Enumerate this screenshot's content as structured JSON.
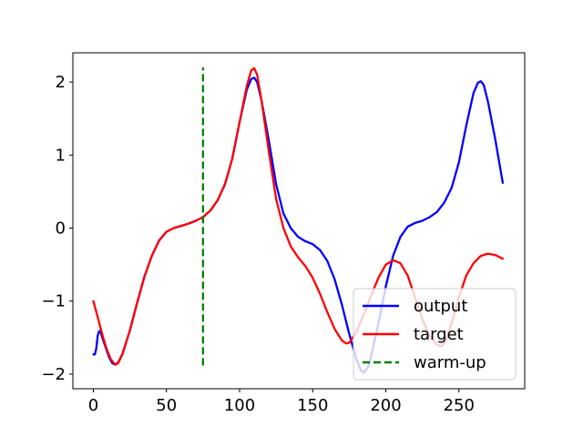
{
  "chart_data": {
    "type": "line",
    "title": "",
    "xlabel": "",
    "ylabel": "",
    "xlim": [
      -14,
      295
    ],
    "ylim": [
      -2.2,
      2.4
    ],
    "xticks": [
      0,
      50,
      100,
      150,
      200,
      250
    ],
    "yticks": [
      -2,
      -1,
      0,
      1,
      2
    ],
    "xtick_labels": [
      "0",
      "50",
      "100",
      "150",
      "200",
      "250"
    ],
    "ytick_labels": [
      "−2",
      "−1",
      "0",
      "1",
      "2"
    ],
    "grid": false,
    "legend_position": "lower-right",
    "series": [
      {
        "name": "output",
        "color": "#0000ff",
        "style": "solid",
        "points": [
          [
            0,
            -1.73
          ],
          [
            1,
            -1.73
          ],
          [
            2,
            -1.65
          ],
          [
            3,
            -1.47
          ],
          [
            4,
            -1.41
          ],
          [
            5,
            -1.43
          ],
          [
            7,
            -1.55
          ],
          [
            9,
            -1.67
          ],
          [
            11,
            -1.78
          ],
          [
            13,
            -1.85
          ],
          [
            15,
            -1.87
          ],
          [
            17,
            -1.84
          ],
          [
            20,
            -1.72
          ],
          [
            25,
            -1.4
          ],
          [
            30,
            -1.02
          ],
          [
            35,
            -0.66
          ],
          [
            40,
            -0.38
          ],
          [
            45,
            -0.17
          ],
          [
            50,
            -0.05
          ],
          [
            55,
            0.0
          ],
          [
            60,
            0.03
          ],
          [
            65,
            0.06
          ],
          [
            70,
            0.1
          ],
          [
            75,
            0.15
          ],
          [
            80,
            0.24
          ],
          [
            85,
            0.38
          ],
          [
            90,
            0.6
          ],
          [
            95,
            0.95
          ],
          [
            100,
            1.45
          ],
          [
            105,
            1.9
          ],
          [
            108,
            2.04
          ],
          [
            110,
            2.06
          ],
          [
            112,
            2.0
          ],
          [
            115,
            1.75
          ],
          [
            120,
            1.2
          ],
          [
            125,
            0.6
          ],
          [
            130,
            0.2
          ],
          [
            135,
            0.0
          ],
          [
            140,
            -0.12
          ],
          [
            145,
            -0.18
          ],
          [
            150,
            -0.22
          ],
          [
            155,
            -0.3
          ],
          [
            160,
            -0.45
          ],
          [
            165,
            -0.7
          ],
          [
            170,
            -1.05
          ],
          [
            175,
            -1.45
          ],
          [
            180,
            -1.8
          ],
          [
            183,
            -1.95
          ],
          [
            185,
            -1.98
          ],
          [
            188,
            -1.9
          ],
          [
            190,
            -1.75
          ],
          [
            195,
            -1.3
          ],
          [
            200,
            -0.8
          ],
          [
            205,
            -0.38
          ],
          [
            210,
            -0.12
          ],
          [
            215,
            0.02
          ],
          [
            220,
            0.07
          ],
          [
            225,
            0.1
          ],
          [
            230,
            0.15
          ],
          [
            235,
            0.22
          ],
          [
            240,
            0.35
          ],
          [
            245,
            0.55
          ],
          [
            250,
            0.9
          ],
          [
            255,
            1.4
          ],
          [
            260,
            1.85
          ],
          [
            263,
            1.99
          ],
          [
            265,
            2.01
          ],
          [
            267,
            1.96
          ],
          [
            270,
            1.72
          ],
          [
            275,
            1.2
          ],
          [
            280,
            0.62
          ]
        ]
      },
      {
        "name": "target",
        "color": "#ff0000",
        "style": "solid",
        "points": [
          [
            0,
            -1.0
          ],
          [
            3,
            -1.22
          ],
          [
            6,
            -1.45
          ],
          [
            9,
            -1.65
          ],
          [
            12,
            -1.8
          ],
          [
            15,
            -1.87
          ],
          [
            17,
            -1.85
          ],
          [
            20,
            -1.72
          ],
          [
            25,
            -1.4
          ],
          [
            30,
            -1.02
          ],
          [
            35,
            -0.66
          ],
          [
            40,
            -0.38
          ],
          [
            45,
            -0.17
          ],
          [
            50,
            -0.05
          ],
          [
            55,
            0.0
          ],
          [
            60,
            0.03
          ],
          [
            65,
            0.06
          ],
          [
            70,
            0.1
          ],
          [
            75,
            0.15
          ],
          [
            80,
            0.24
          ],
          [
            85,
            0.38
          ],
          [
            90,
            0.6
          ],
          [
            95,
            0.95
          ],
          [
            100,
            1.45
          ],
          [
            105,
            1.95
          ],
          [
            108,
            2.16
          ],
          [
            110,
            2.19
          ],
          [
            112,
            2.1
          ],
          [
            115,
            1.75
          ],
          [
            120,
            1.05
          ],
          [
            125,
            0.4
          ],
          [
            130,
            0.0
          ],
          [
            135,
            -0.25
          ],
          [
            140,
            -0.4
          ],
          [
            145,
            -0.52
          ],
          [
            150,
            -0.68
          ],
          [
            155,
            -0.9
          ],
          [
            160,
            -1.15
          ],
          [
            165,
            -1.38
          ],
          [
            170,
            -1.54
          ],
          [
            173,
            -1.58
          ],
          [
            175,
            -1.57
          ],
          [
            180,
            -1.42
          ],
          [
            185,
            -1.18
          ],
          [
            190,
            -0.92
          ],
          [
            195,
            -0.68
          ],
          [
            200,
            -0.5
          ],
          [
            205,
            -0.44
          ],
          [
            210,
            -0.48
          ],
          [
            215,
            -0.65
          ],
          [
            220,
            -0.95
          ],
          [
            225,
            -1.25
          ],
          [
            230,
            -1.48
          ],
          [
            235,
            -1.6
          ],
          [
            238,
            -1.62
          ],
          [
            241,
            -1.55
          ],
          [
            245,
            -1.3
          ],
          [
            250,
            -0.95
          ],
          [
            255,
            -0.65
          ],
          [
            260,
            -0.48
          ],
          [
            265,
            -0.38
          ],
          [
            270,
            -0.35
          ],
          [
            275,
            -0.37
          ],
          [
            280,
            -0.42
          ]
        ]
      },
      {
        "name": "warm-up",
        "color": "#008000",
        "style": "dashed",
        "points": [
          [
            75,
            -1.88
          ],
          [
            75,
            2.2
          ]
        ]
      }
    ]
  }
}
